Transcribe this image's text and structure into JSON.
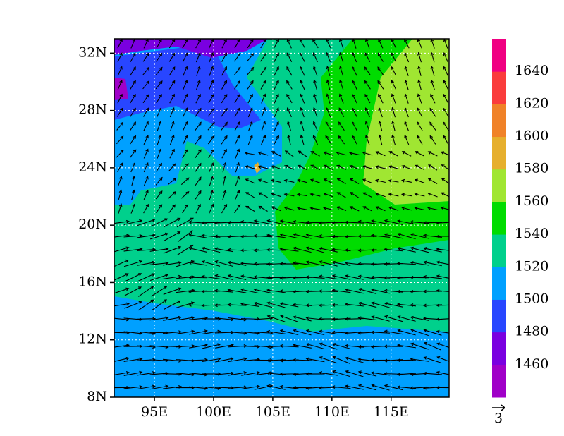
{
  "map": {
    "xlim": [
      91.6,
      119.9
    ],
    "ylim": [
      8,
      33
    ],
    "xticks": [
      {
        "value": 95,
        "label": "95E"
      },
      {
        "value": 100,
        "label": "100E"
      },
      {
        "value": 105,
        "label": "105E"
      },
      {
        "value": 110,
        "label": "110E"
      },
      {
        "value": 115,
        "label": "115E"
      }
    ],
    "yticks": [
      {
        "value": 8,
        "label": "8N"
      },
      {
        "value": 12,
        "label": "12N"
      },
      {
        "value": 16,
        "label": "16N"
      },
      {
        "value": 20,
        "label": "20N"
      },
      {
        "value": 24,
        "label": "24N"
      },
      {
        "value": 28,
        "label": "28N"
      },
      {
        "value": 32,
        "label": "32N"
      }
    ],
    "grid": true,
    "colorbar": {
      "lim": [
        1440,
        1660
      ],
      "colors": [
        "#a000c8",
        "#7a00e0",
        "#2846ff",
        "#00a0ff",
        "#00d08c",
        "#00dc00",
        "#a0e632",
        "#e6af2d",
        "#f08228",
        "#fa3c3c",
        "#f00082"
      ],
      "ticks": [
        1460,
        1480,
        1500,
        1520,
        1540,
        1560,
        1580,
        1600,
        1620,
        1640
      ]
    },
    "reference_vector": 3
  }
}
